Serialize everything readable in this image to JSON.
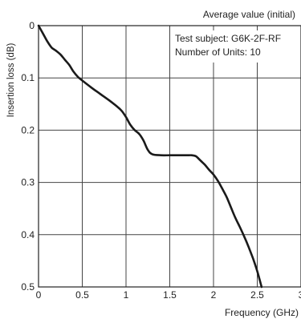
{
  "chart_data": {
    "type": "line",
    "title": "Average value (initial)",
    "annotations": [
      "Test subject: G6K-2F-RF",
      "Number of Units: 10"
    ],
    "xlabel": "Frequency (GHz)",
    "ylabel": "Insertion loss (dB)",
    "xlim": [
      0,
      3
    ],
    "ylim": [
      0.5,
      0
    ],
    "y_inverted": true,
    "grid": true,
    "x_ticks": [
      0,
      0.5,
      1,
      1.5,
      2,
      2.5,
      3
    ],
    "x_tick_labels": [
      "0",
      "0.5",
      "1",
      "1.5",
      "2",
      "2.5",
      "3"
    ],
    "y_ticks": [
      0,
      0.1,
      0.2,
      0.3,
      0.4,
      0.5
    ],
    "y_tick_labels": [
      "0",
      "0.1",
      "0.2",
      "0.3",
      "0.4",
      "0.5"
    ],
    "colors": {
      "line": "#1a1a1a",
      "grid": "#444444",
      "frame": "#222222"
    },
    "series": [
      {
        "x": [
          0,
          0.05,
          0.1,
          0.15,
          0.2,
          0.25,
          0.3,
          0.35,
          0.4,
          0.45,
          0.5,
          0.6,
          0.7,
          0.8,
          0.9,
          0.95,
          1.0,
          1.05,
          1.1,
          1.15,
          1.2,
          1.25,
          1.3,
          1.4,
          1.5,
          1.6,
          1.7,
          1.75,
          1.8,
          1.85,
          1.9,
          1.95,
          2.0,
          2.05,
          2.1,
          2.15,
          2.2,
          2.25,
          2.3,
          2.35,
          2.4,
          2.45,
          2.5,
          2.55
        ],
        "y": [
          0,
          0.015,
          0.03,
          0.042,
          0.048,
          0.055,
          0.065,
          0.075,
          0.088,
          0.098,
          0.105,
          0.118,
          0.13,
          0.142,
          0.155,
          0.163,
          0.175,
          0.19,
          0.2,
          0.207,
          0.22,
          0.238,
          0.246,
          0.248,
          0.248,
          0.248,
          0.248,
          0.248,
          0.25,
          0.258,
          0.266,
          0.276,
          0.285,
          0.297,
          0.312,
          0.328,
          0.348,
          0.368,
          0.385,
          0.403,
          0.423,
          0.445,
          0.47,
          0.5
        ]
      }
    ]
  }
}
